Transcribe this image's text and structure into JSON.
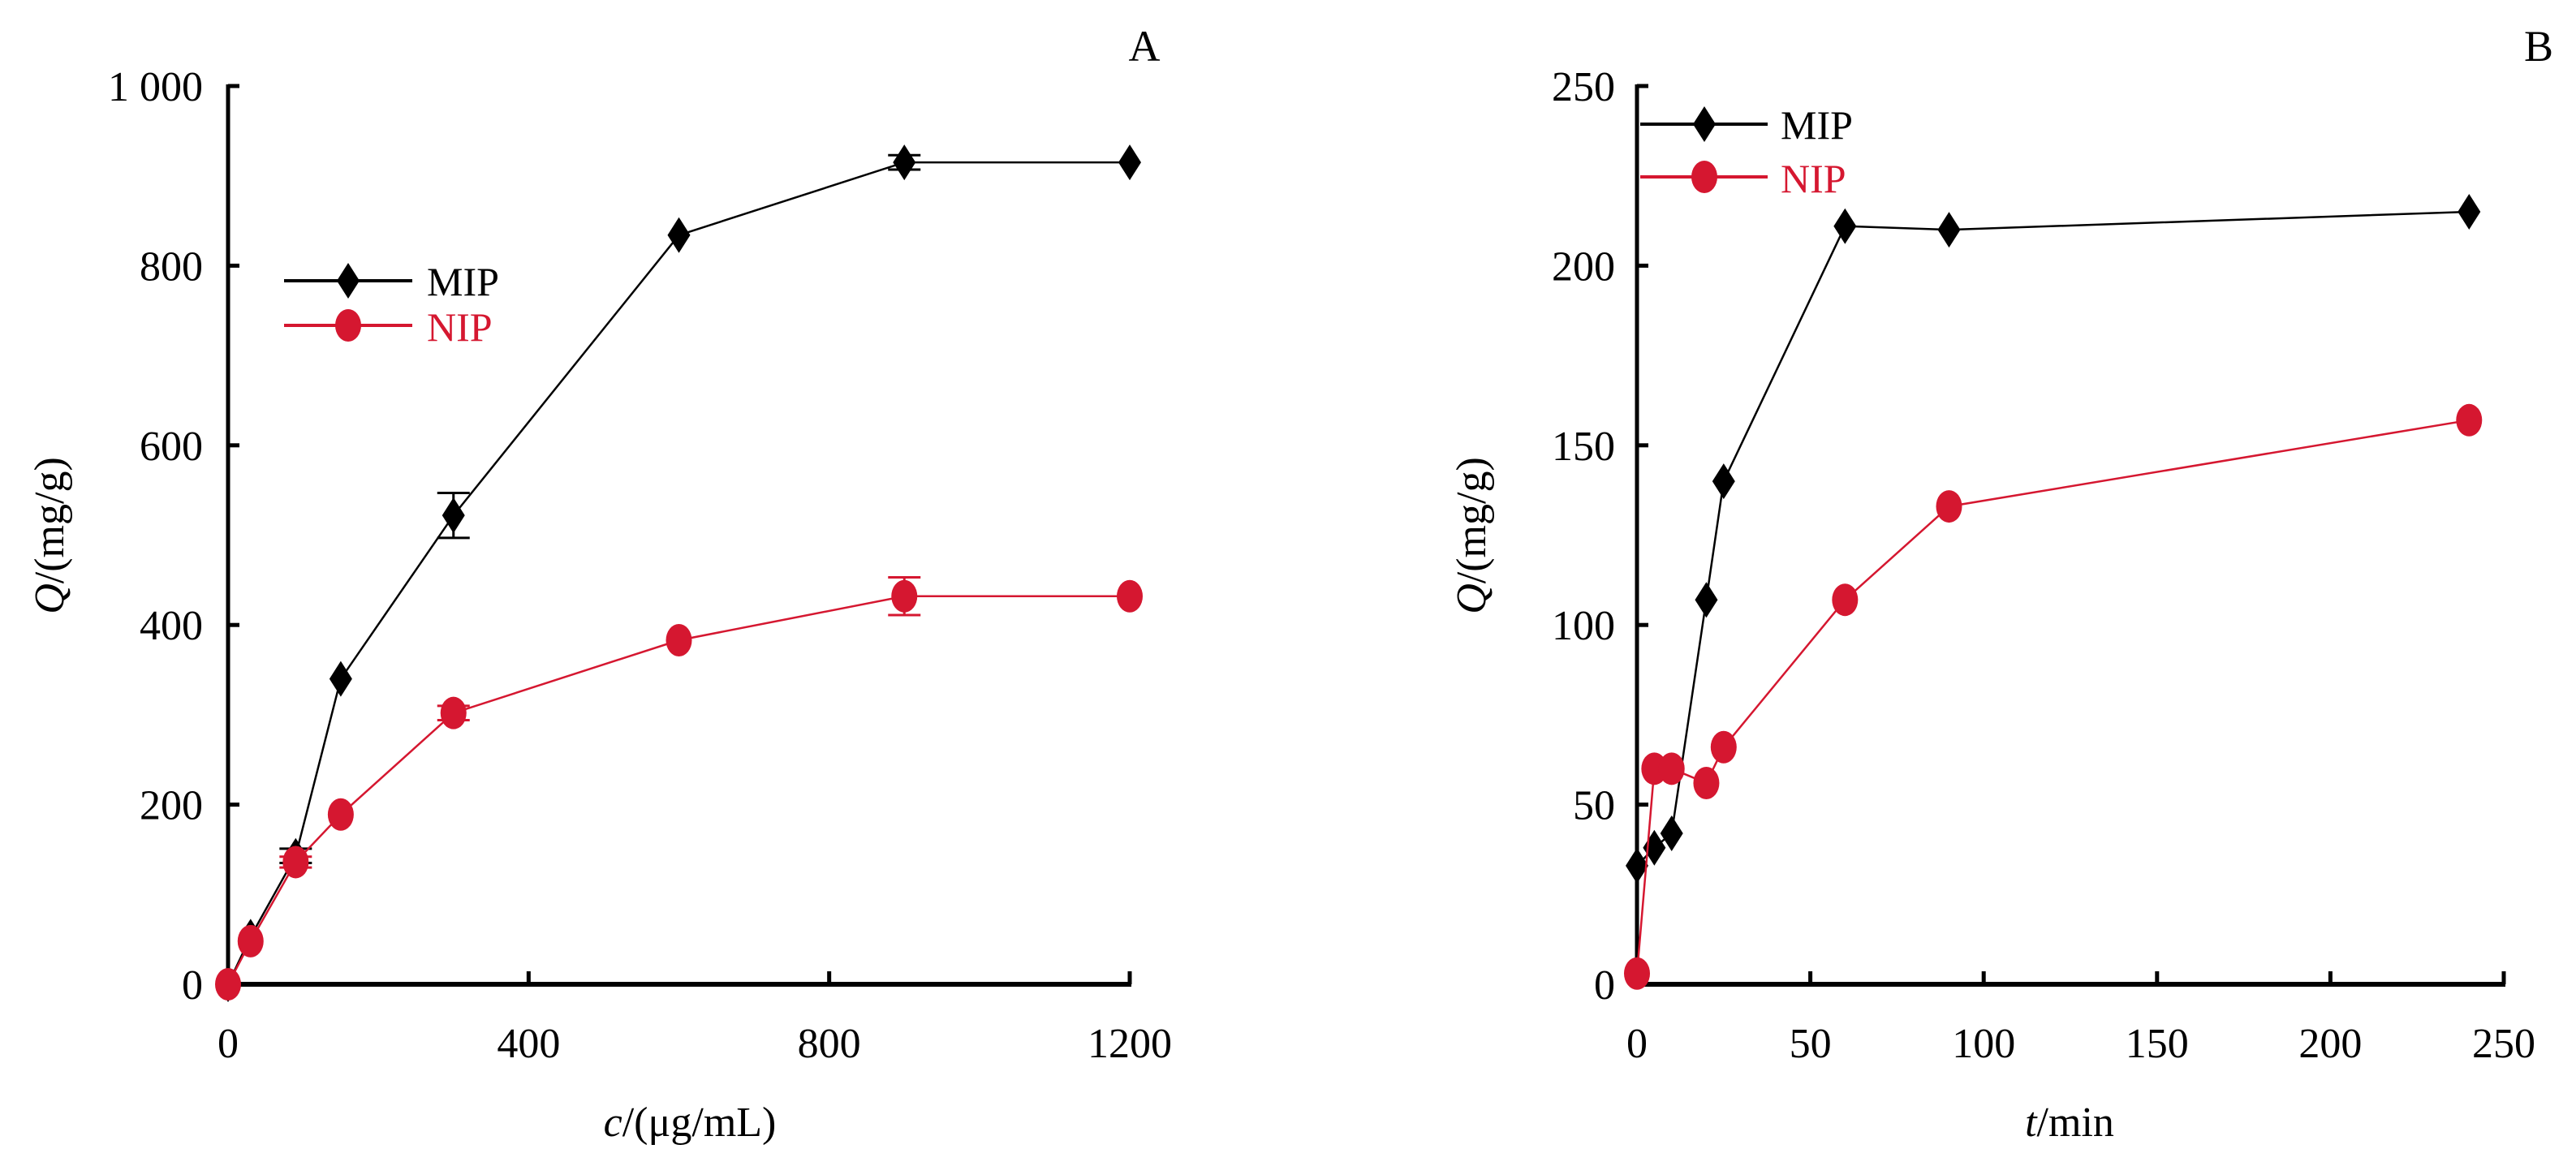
{
  "colors": {
    "mip": "#000000",
    "nip": "#D51730",
    "axis": "#000000"
  },
  "chart_data": [
    {
      "type": "line",
      "panel_label": "A",
      "xlabel_var": "c",
      "xlabel_unit": "/(μg/mL)",
      "ylabel_var": "Q",
      "ylabel_unit": "/(mg/g)",
      "xlim": [
        0,
        1200
      ],
      "ylim": [
        0,
        1000
      ],
      "xticks": [
        0,
        400,
        800,
        1200
      ],
      "xtick_labels": [
        "0",
        "400",
        "800",
        "1200"
      ],
      "yticks": [
        0,
        200,
        400,
        600,
        800,
        1000
      ],
      "ytick_labels": [
        "0",
        "200",
        "400",
        "600",
        "800",
        "1 000"
      ],
      "legend_position": "upper-left",
      "grid": false,
      "series": [
        {
          "name": "MIP",
          "marker": "diamond",
          "color": "#000000",
          "x": [
            0,
            30,
            90,
            150,
            300,
            600,
            900,
            1200
          ],
          "y": [
            0,
            53,
            143,
            340,
            522,
            834,
            915,
            915
          ],
          "err": [
            0,
            0,
            8,
            0,
            25,
            0,
            8,
            0
          ]
        },
        {
          "name": "NIP",
          "marker": "circle",
          "color": "#D51730",
          "x": [
            0,
            30,
            90,
            150,
            300,
            600,
            900,
            1200
          ],
          "y": [
            0,
            48,
            136,
            189,
            302,
            383,
            432,
            432
          ],
          "err": [
            0,
            0,
            6,
            0,
            8,
            0,
            21,
            0
          ]
        }
      ]
    },
    {
      "type": "line",
      "panel_label": "B",
      "xlabel_var": "t",
      "xlabel_unit": "/min",
      "ylabel_var": "Q",
      "ylabel_unit": "/(mg/g)",
      "xlim": [
        0,
        250
      ],
      "ylim": [
        0,
        250
      ],
      "xticks": [
        0,
        50,
        100,
        150,
        200,
        250
      ],
      "xtick_labels": [
        "0",
        "50",
        "100",
        "150",
        "200",
        "250"
      ],
      "yticks": [
        0,
        50,
        100,
        150,
        200,
        250
      ],
      "ytick_labels": [
        "0",
        "50",
        "100",
        "150",
        "200",
        "250"
      ],
      "legend_position": "upper-left",
      "grid": false,
      "series": [
        {
          "name": "MIP",
          "marker": "diamond",
          "color": "#000000",
          "x": [
            0,
            5,
            10,
            20,
            25,
            60,
            90,
            240
          ],
          "y": [
            33,
            38,
            42,
            107,
            140,
            211,
            210,
            215
          ],
          "err": [
            0,
            0,
            0,
            0,
            0,
            0,
            0,
            0
          ]
        },
        {
          "name": "NIP",
          "marker": "circle",
          "color": "#D51730",
          "x": [
            0,
            5,
            10,
            20,
            25,
            60,
            90,
            240
          ],
          "y": [
            3,
            60,
            60,
            56,
            66,
            107,
            133,
            157
          ],
          "err": [
            0,
            0,
            0,
            0,
            0,
            0,
            0,
            0
          ]
        }
      ]
    }
  ]
}
